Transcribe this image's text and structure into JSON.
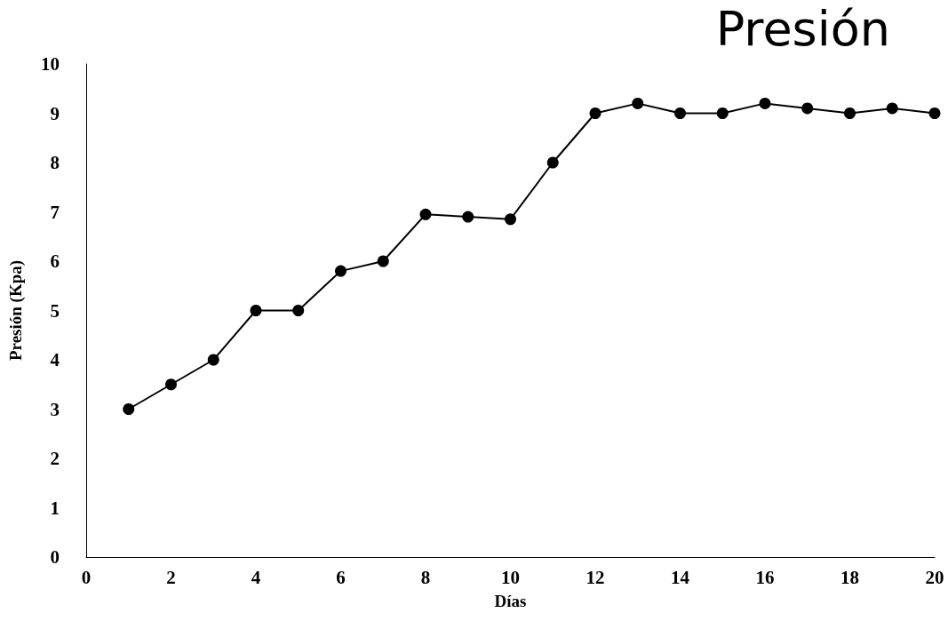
{
  "chart_data": {
    "type": "line",
    "title": "Presión",
    "xlabel": "Días",
    "ylabel": "Presión (Kpa)",
    "x": [
      1,
      2,
      3,
      4,
      5,
      6,
      7,
      8,
      9,
      10,
      11,
      12,
      13,
      14,
      15,
      16,
      17,
      18,
      19,
      20
    ],
    "series": [
      {
        "color": "#000000",
        "values": [
          3,
          3.5,
          4,
          5,
          5,
          5.8,
          6,
          6.95,
          6.9,
          6.85,
          8,
          9,
          9.2,
          9,
          9,
          9.2,
          9.1,
          9,
          9.1,
          9
        ]
      }
    ],
    "xlim": [
      0,
      20
    ],
    "xticks": [
      0,
      2,
      4,
      6,
      8,
      10,
      12,
      14,
      16,
      18,
      20
    ],
    "ylim": [
      0,
      10
    ],
    "yticks": [
      0,
      1,
      2,
      3,
      4,
      5,
      6,
      7,
      8,
      9,
      10
    ],
    "grid": false,
    "marker": "circle",
    "line_style": "solid"
  }
}
